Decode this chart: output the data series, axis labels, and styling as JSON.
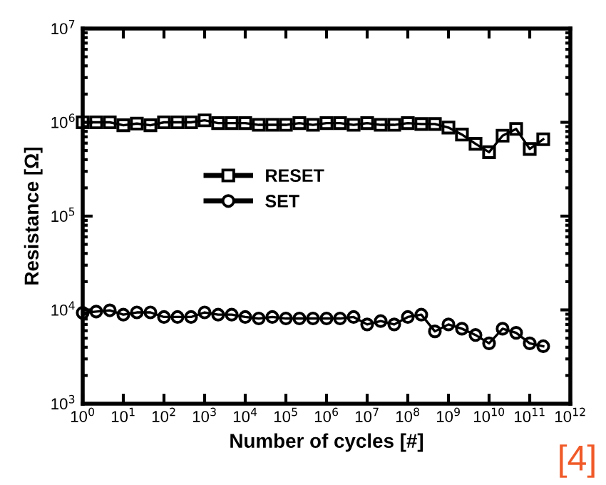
{
  "chart_data": {
    "type": "line",
    "xlabel": "Number of cycles [#]",
    "ylabel": "Resistance [Ω]",
    "x": [
      1,
      2.15,
      4.64,
      10,
      21.5,
      46.4,
      100,
      215,
      464,
      1000,
      2150,
      4640,
      10000,
      21500,
      46400,
      100000,
      215000,
      464000,
      1000000,
      2150000,
      4640000,
      10000000,
      21500000,
      46400000,
      100000000,
      215000000,
      464000000,
      1000000000,
      2150000000,
      4640000000,
      10000000000,
      21500000000,
      46400000000,
      100000000000,
      215000000000
    ],
    "series": [
      {
        "name": "RESET",
        "color": "#000000",
        "marker": "square",
        "values": [
          1000000,
          1000000,
          1000000,
          930000,
          970000,
          930000,
          1000000,
          1000000,
          1000000,
          1050000,
          980000,
          980000,
          980000,
          940000,
          940000,
          940000,
          980000,
          940000,
          980000,
          980000,
          940000,
          980000,
          940000,
          940000,
          980000,
          960000,
          960000,
          880000,
          740000,
          590000,
          480000,
          720000,
          850000,
          520000,
          660000
        ]
      },
      {
        "name": "SET",
        "color": "#000000",
        "marker": "circle",
        "values": [
          9300,
          9600,
          9900,
          8900,
          9400,
          9400,
          8400,
          8400,
          8400,
          9400,
          8900,
          8900,
          8400,
          8100,
          8400,
          8100,
          8100,
          8100,
          8100,
          8100,
          8400,
          7000,
          7600,
          7000,
          8400,
          8900,
          5900,
          7000,
          6300,
          5400,
          4400,
          6300,
          5700,
          4400,
          4100
        ]
      }
    ],
    "log": "xy",
    "xlim": [
      1,
      1000000000000
    ],
    "ylim": [
      1000,
      10000000
    ],
    "xticks": [
      {
        "value": 1,
        "label": "10$^{0}$"
      },
      {
        "value": 10,
        "label": "10$^{1}$"
      },
      {
        "value": 100,
        "label": "10$^{2}$"
      },
      {
        "value": 1000,
        "label": "10$^{3}$"
      },
      {
        "value": 10000,
        "label": "10$^{4}$"
      },
      {
        "value": 100000,
        "label": "10$^{5}$"
      },
      {
        "value": 1000000,
        "label": "10$^{6}$"
      },
      {
        "value": 10000000,
        "label": "10$^{7}$"
      },
      {
        "value": 100000000,
        "label": "10$^{8}$"
      },
      {
        "value": 1000000000,
        "label": "10$^{9}$"
      },
      {
        "value": 10000000000,
        "label": "10$^{10}$"
      },
      {
        "value": 100000000000,
        "label": "10$^{11}$"
      },
      {
        "value": 1000000000000,
        "label": "10$^{12}$"
      }
    ],
    "yticks": [
      {
        "value": 1000,
        "label": "10$^{3}$"
      },
      {
        "value": 10000,
        "label": "10$^{4}$"
      },
      {
        "value": 100000,
        "label": "10$^{5}$"
      },
      {
        "value": 1000000,
        "label": "10$^{6}$"
      },
      {
        "value": 10000000,
        "label": "10$^{7}$"
      }
    ],
    "legend": "center left",
    "grid": false,
    "line_style": "solid",
    "annotations": [
      "[4]"
    ]
  }
}
